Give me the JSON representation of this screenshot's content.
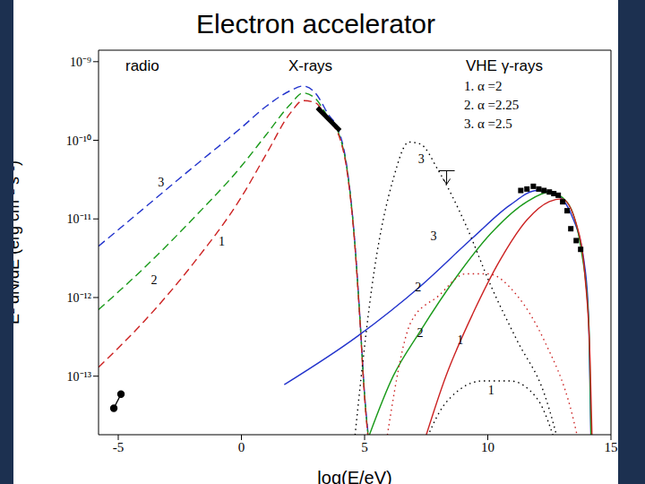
{
  "chart_data": {
    "type": "line",
    "title": "Electron accelerator",
    "x_label": "log(E/eV)",
    "y_label": "E² dN/dE (erg cm⁻² s⁻¹)",
    "band_labels": [
      "radio",
      "X-rays",
      "VHE γ-rays"
    ],
    "legend_entries": [
      "1. α =2",
      "2. α =2.25",
      "3. α =2.5"
    ],
    "log": "y",
    "grid": false,
    "xlim": [
      -5.8,
      15
    ],
    "xticks": [
      -5,
      0,
      5,
      10,
      15
    ],
    "ylim": [
      1.8e-14,
      1.4e-09
    ],
    "yticks": [
      {
        "value": 1e-13,
        "label": "10⁻¹³"
      },
      {
        "value": 1e-12,
        "label": "10⁻¹²"
      },
      {
        "value": 1e-11,
        "label": "10⁻¹¹"
      },
      {
        "value": 1e-10,
        "label": "10⁻¹⁰"
      },
      {
        "value": 1e-09,
        "label": "10⁻⁹"
      }
    ],
    "series": [
      {
        "type": "line",
        "color": "#2233cc",
        "line_style": "dashed",
        "x": [
          -5.8,
          -4,
          -2,
          0,
          1,
          2,
          2.5,
          3,
          3.5,
          4,
          4.3,
          4.6,
          4.8,
          5,
          5.2
        ],
        "values": [
          4.5e-12,
          1.33e-11,
          4.45e-11,
          1.45e-10,
          2.7e-10,
          4.3e-10,
          4.9e-10,
          4e-10,
          2.2e-10,
          1.2e-10,
          4.2e-11,
          5.2e-12,
          6.3e-13,
          5.9e-14,
          1.25e-14
        ]
      },
      {
        "type": "line",
        "color": "#1a9a1a",
        "line_style": "dashed",
        "x": [
          -5.8,
          -4,
          -2,
          0,
          1,
          2,
          2.5,
          3,
          3.5,
          4,
          4.3,
          4.6,
          4.8,
          5,
          5.2
        ],
        "values": [
          7e-13,
          2.3e-12,
          9.8e-12,
          4.7e-11,
          1.17e-10,
          2.9e-10,
          4e-10,
          3.4e-10,
          2e-10,
          1.1e-10,
          4e-11,
          5e-12,
          6e-13,
          5.6e-14,
          1.2e-14
        ]
      },
      {
        "type": "line",
        "color": "#cc2222",
        "line_style": "dashed",
        "x": [
          -5.8,
          -4,
          -2,
          0,
          1,
          2,
          2.5,
          3,
          3.5,
          4,
          4.3,
          4.6,
          4.8,
          5,
          5.2
        ],
        "values": [
          1.3e-13,
          4.8e-13,
          2.6e-12,
          1.9e-11,
          6.6e-11,
          2.25e-10,
          3.2e-10,
          3e-10,
          1.85e-10,
          1.05e-10,
          3.8e-11,
          4.8e-12,
          5.8e-13,
          5.3e-14,
          1.1e-14
        ]
      },
      {
        "type": "line",
        "color": "#2233cc",
        "line_style": "solid",
        "x": [
          1.74,
          4.7,
          7.25,
          9.4,
          10.9,
          12,
          12.7,
          13.4,
          13.95,
          14.1,
          14.2
        ],
        "values": [
          7.8e-14,
          3.2e-13,
          1.38e-12,
          5.8e-12,
          1.5e-11,
          2.3e-11,
          2.1e-11,
          1.12e-11,
          2.3e-12,
          4.8e-13,
          1e-14
        ]
      },
      {
        "type": "line",
        "color": "#1a9a1a",
        "line_style": "solid",
        "x": [
          4.9,
          6.16,
          7.25,
          8.7,
          10.14,
          11.6,
          12.5,
          13.2,
          13.8,
          14.1,
          14.2
        ],
        "values": [
          1e-14,
          1e-13,
          3.7e-13,
          1.78e-12,
          6.6e-12,
          1.66e-11,
          2.2e-11,
          1.66e-11,
          3.9e-12,
          4.8e-13,
          1e-14
        ]
      },
      {
        "type": "line",
        "color": "#cc2222",
        "line_style": "solid",
        "x": [
          7.25,
          8.3,
          9.4,
          10.5,
          11.6,
          12.5,
          13.0,
          13.6,
          13.95,
          14.15,
          14.25
        ],
        "values": [
          1e-14,
          1e-13,
          6.3e-13,
          3e-12,
          9.8e-12,
          1.66e-11,
          1.8e-11,
          8.5e-12,
          1.8e-12,
          1.7e-13,
          1e-14
        ]
      },
      {
        "type": "line",
        "color": "#000000",
        "line_style": "dotted",
        "x": [
          4.53,
          5.4,
          6.16,
          6.8,
          7.25,
          8.0,
          9.1,
          10.14,
          11.2,
          12.3,
          13.0
        ],
        "values": [
          1e-14,
          2.3e-12,
          3.2e-11,
          9.5e-11,
          9e-11,
          4.1e-11,
          8.5e-12,
          1.38e-12,
          2.8e-13,
          5.9e-14,
          1e-14
        ]
      },
      {
        "type": "line",
        "color": "#cc2222",
        "line_style": "dotted",
        "x": [
          5.8,
          6.9,
          8.0,
          9.1,
          10.0,
          11.2,
          12.3,
          13.4,
          13.8
        ],
        "values": [
          1e-14,
          5e-13,
          1.05e-12,
          2e-12,
          2e-12,
          1.05e-12,
          2.8e-13,
          3.5e-14,
          1e-14
        ]
      },
      {
        "type": "line",
        "color": "#000000",
        "line_style": "dotted",
        "x": [
          7.25,
          8.3,
          9.8,
          10.9,
          12.0,
          12.9
        ],
        "values": [
          1e-14,
          4.6e-14,
          8.7e-14,
          8.7e-14,
          5.2e-14,
          1e-14
        ]
      },
      {
        "type": "line",
        "color": "#000000",
        "line_style": "solid",
        "marker": "circle",
        "x": [
          -5.18,
          -4.89
        ],
        "values": [
          3.9e-14,
          5.9e-14
        ]
      },
      {
        "type": "line",
        "color": "#000000",
        "line_style": "thick",
        "x": [
          3.08,
          4.0
        ],
        "values": [
          2.6e-10,
          1.33e-10
        ]
      },
      {
        "type": "scatter",
        "color": "#000000",
        "marker": "square",
        "x": [
          11.34,
          11.59,
          11.85,
          12.07,
          12.28,
          12.5,
          12.68,
          12.86,
          13.04,
          13.22,
          13.37,
          13.59,
          13.77
        ],
        "values": [
          2.3e-11,
          2.4e-11,
          2.6e-11,
          2.4e-11,
          2.3e-11,
          2.2e-11,
          2.1e-11,
          2e-11,
          1.65e-11,
          1.27e-11,
          7.5e-12,
          5.3e-12,
          4.1e-12
        ]
      },
      {
        "type": "upper_limit",
        "color": "#000000",
        "x": [
          8.33
        ],
        "values": [
          4.1e-11
        ]
      }
    ],
    "annotations": [
      {
        "text": "3",
        "x": -3.26,
        "y": 2.8e-11
      },
      {
        "text": "1",
        "x": -0.8,
        "y": 5e-12
      },
      {
        "text": "2",
        "x": -3.55,
        "y": 1.6e-12
      },
      {
        "text": "3",
        "x": 7.3,
        "y": 5.6e-11
      },
      {
        "text": "3",
        "x": 7.8,
        "y": 5.8e-12
      },
      {
        "text": "2",
        "x": 7.17,
        "y": 1.3e-12
      },
      {
        "text": "2",
        "x": 7.25,
        "y": 3.4e-13
      },
      {
        "text": "1",
        "x": 8.88,
        "y": 2.8e-13
      },
      {
        "text": "1",
        "x": 10.14,
        "y": 6.3e-14
      }
    ]
  }
}
